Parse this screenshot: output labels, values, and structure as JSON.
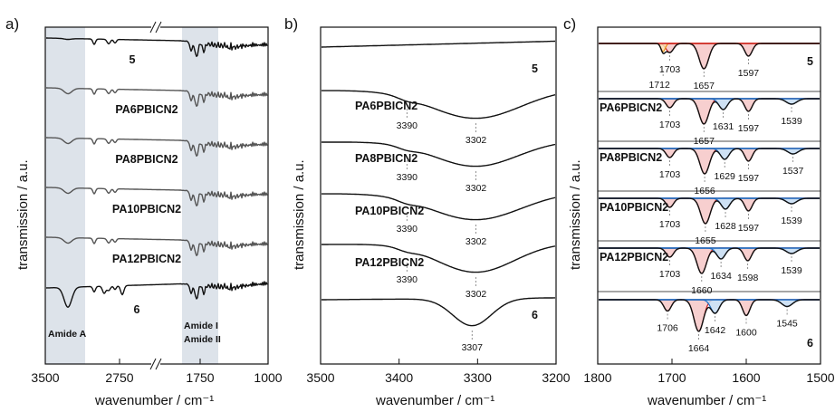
{
  "chart_data": [
    {
      "panel": "a)",
      "type": "line",
      "xlabel": "wavenumber / cm⁻¹",
      "ylabel": "transmission / a.u.",
      "x_ticks": [
        "3500",
        "2750",
        "1750",
        "1000"
      ],
      "axis_break": true,
      "shaded_regions": [
        {
          "label": "Amide A",
          "range": [
            3500,
            3080
          ]
        },
        {
          "label": "Amide I\nAmide II",
          "range": [
            1800,
            1480
          ]
        }
      ],
      "series": [
        {
          "name": "5"
        },
        {
          "name": "PA6PBICN2"
        },
        {
          "name": "PA8PBICN2"
        },
        {
          "name": "PA10PBICN2"
        },
        {
          "name": "PA12PBICN2"
        },
        {
          "name": "6"
        }
      ],
      "region_labels": [
        "Amide A",
        "Amide I",
        "Amide II"
      ]
    },
    {
      "panel": "b)",
      "type": "line",
      "xlabel": "wavenumber / cm⁻¹",
      "ylabel": "transmission / a.u.",
      "xlim": [
        3500,
        3200
      ],
      "x_ticks": [
        "3500",
        "3400",
        "3300",
        "3200"
      ],
      "series": [
        {
          "name": "5",
          "peaks": []
        },
        {
          "name": "PA6PBICN2",
          "peaks": [
            3390,
            3302
          ]
        },
        {
          "name": "PA8PBICN2",
          "peaks": [
            3390,
            3302
          ]
        },
        {
          "name": "PA10PBICN2",
          "peaks": [
            3390,
            3302
          ]
        },
        {
          "name": "PA12PBICN2",
          "peaks": [
            3390,
            3302
          ]
        },
        {
          "name": "6",
          "peaks": [
            3307
          ]
        }
      ]
    },
    {
      "panel": "c)",
      "type": "line",
      "xlabel": "wavenumber / cm⁻¹",
      "ylabel": "transmission / a.u.",
      "xlim": [
        1800,
        1500
      ],
      "x_ticks": [
        "1800",
        "1700",
        "1600",
        "1500"
      ],
      "series": [
        {
          "name": "5",
          "peaks_black": [
            1703,
            1657,
            1597
          ],
          "peaks_colored": [
            1712
          ]
        },
        {
          "name": "PA6PBICN2",
          "peaks_black": [
            1703,
            1657,
            1597
          ],
          "peaks_colored": [
            1631,
            1539
          ]
        },
        {
          "name": "PA8PBICN2",
          "peaks_black": [
            1703,
            1656,
            1597
          ],
          "peaks_colored": [
            1629,
            1537
          ]
        },
        {
          "name": "PA10PBICN2",
          "peaks_black": [
            1703,
            1655,
            1597
          ],
          "peaks_colored": [
            1628,
            1539
          ]
        },
        {
          "name": "PA12PBICN2",
          "peaks_black": [
            1703,
            1660,
            1598
          ],
          "peaks_colored": [
            1634,
            1539
          ]
        },
        {
          "name": "6",
          "peaks_black": [
            1706,
            1664,
            1600
          ],
          "peaks_colored": [
            1642,
            1545
          ]
        }
      ],
      "colors": {
        "red_fit": "#cc1f1f",
        "blue_fit": "#1f6fc4",
        "orange_fit": "#e8941a",
        "red_fill": "#f6c7c7",
        "blue_fill": "#c6dcf2",
        "peak_blue_text": "#1f6fc4",
        "peak_orange_text": "#d98a12"
      }
    }
  ]
}
